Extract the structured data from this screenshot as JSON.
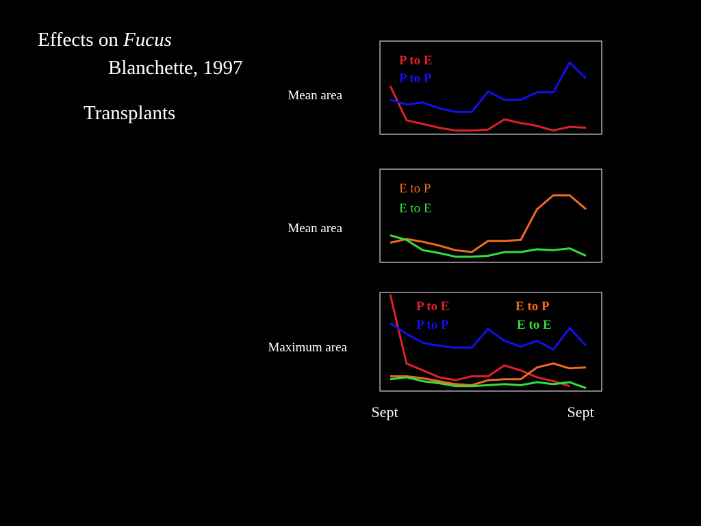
{
  "slide": {
    "title": "Effects on ",
    "title_italic": "Fucus",
    "subtitle": "Blanchette, 1997",
    "heading": "Transplants"
  },
  "chart_data": [
    {
      "type": "line",
      "y_label": "Mean area",
      "ylim": [
        0,
        100
      ],
      "legend_bold": true,
      "series": [
        {
          "name": "P to E",
          "color": "#e0202a",
          "values": [
            52,
            15,
            11,
            7,
            4,
            4,
            5,
            16,
            12,
            9,
            4,
            8,
            7
          ]
        },
        {
          "name": "P to P",
          "color": "#1010f0",
          "values": [
            37,
            32,
            34,
            28,
            24,
            24,
            46,
            37,
            37,
            45,
            45,
            77,
            60
          ]
        }
      ]
    },
    {
      "type": "line",
      "y_label": "Mean area",
      "ylim": [
        0,
        100
      ],
      "legend_bold": false,
      "series": [
        {
          "name": "E to P",
          "color": "#f26a20",
          "values": [
            21,
            25,
            22,
            18,
            13,
            11,
            23,
            23,
            24,
            57,
            72,
            72,
            57
          ]
        },
        {
          "name": "E to E",
          "color": "#30e040",
          "values": [
            29,
            24,
            13,
            10,
            6,
            6,
            7,
            11,
            11,
            14,
            13,
            15,
            7
          ]
        }
      ]
    },
    {
      "type": "line",
      "y_label": "Maximum area",
      "ylim": [
        0,
        100
      ],
      "legend_bold": true,
      "categories": [
        "Sept",
        null,
        null,
        null,
        null,
        null,
        null,
        null,
        null,
        null,
        null,
        null,
        "Sept"
      ],
      "series": [
        {
          "name": "P to E",
          "color": "#e0202a",
          "values": [
            98,
            28,
            21,
            14,
            11,
            15,
            15,
            26,
            21,
            14,
            10,
            5,
            null
          ]
        },
        {
          "name": "P to P",
          "color": "#1010f0",
          "values": [
            69,
            58,
            49,
            46,
            44,
            44,
            63,
            51,
            45,
            51,
            42,
            64,
            46
          ]
        },
        {
          "name": "E to P",
          "color": "#f26a20",
          "values": [
            15,
            15,
            13,
            10,
            7,
            6,
            11,
            12,
            12,
            24,
            28,
            23,
            24
          ]
        },
        {
          "name": "E to E",
          "color": "#30e040",
          "values": [
            12,
            14,
            10,
            8,
            5,
            5,
            6,
            7,
            6,
            9,
            7,
            9,
            3
          ]
        }
      ]
    }
  ]
}
